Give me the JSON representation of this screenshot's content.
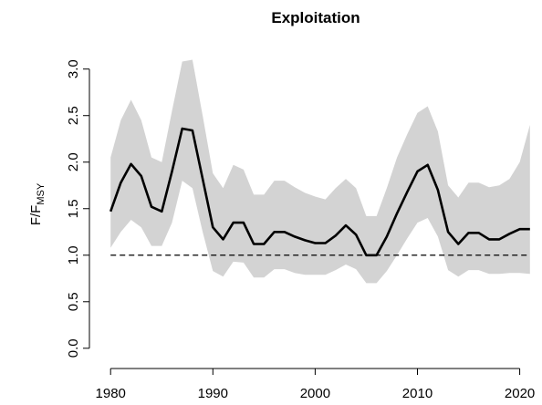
{
  "chart_data": {
    "type": "line",
    "title": "Exploitation",
    "ylabel": {
      "main": "F/F",
      "sub": "MSY"
    },
    "xlabel": "",
    "xlim": [
      1979,
      2022
    ],
    "ylim": [
      -0.1,
      3.35
    ],
    "x_ticks": [
      1980,
      1990,
      2000,
      2010,
      2020
    ],
    "y_ticks": [
      0.0,
      0.5,
      1.0,
      1.5,
      2.0,
      2.5,
      3.0
    ],
    "x_tick_labels": [
      "1980",
      "1990",
      "2000",
      "2010",
      "2020"
    ],
    "y_tick_labels": [
      "0.0",
      "0.5",
      "1.0",
      "1.5",
      "2.0",
      "2.5",
      "3.0"
    ],
    "reference_line": {
      "y": 1.0,
      "style": "dashed"
    },
    "series": [
      {
        "style": "solid",
        "color": "#000000",
        "x": [
          1980,
          1981,
          1982,
          1983,
          1984,
          1985,
          1986,
          1987,
          1988,
          1989,
          1990,
          1991,
          1992,
          1993,
          1994,
          1995,
          1996,
          1997,
          1998,
          1999,
          2000,
          2001,
          2002,
          2003,
          2004,
          2005,
          2006,
          2007,
          2008,
          2009,
          2010,
          2011,
          2012,
          2013,
          2014,
          2015,
          2016,
          2017,
          2018,
          2019,
          2020,
          2021
        ],
        "y": [
          1.47,
          1.78,
          1.98,
          1.85,
          1.52,
          1.47,
          1.9,
          2.36,
          2.34,
          1.82,
          1.3,
          1.17,
          1.35,
          1.35,
          1.12,
          1.12,
          1.25,
          1.25,
          1.2,
          1.16,
          1.13,
          1.13,
          1.21,
          1.32,
          1.22,
          1.0,
          1.0,
          1.2,
          1.45,
          1.68,
          1.9,
          1.97,
          1.7,
          1.25,
          1.12,
          1.24,
          1.24,
          1.17,
          1.17,
          1.23,
          1.28,
          1.28
        ]
      }
    ],
    "confidence_band": {
      "color": "#d3d3d3",
      "x": [
        1980,
        1981,
        1982,
        1983,
        1984,
        1985,
        1986,
        1987,
        1988,
        1989,
        1990,
        1991,
        1992,
        1993,
        1994,
        1995,
        1996,
        1997,
        1998,
        1999,
        2000,
        2001,
        2002,
        2003,
        2004,
        2005,
        2006,
        2007,
        2008,
        2009,
        2010,
        2011,
        2012,
        2013,
        2014,
        2015,
        2016,
        2017,
        2018,
        2019,
        2020,
        2021
      ],
      "upper": [
        2.05,
        2.45,
        2.67,
        2.45,
        2.05,
        2.0,
        2.55,
        3.08,
        3.1,
        2.5,
        1.88,
        1.72,
        1.97,
        1.92,
        1.65,
        1.65,
        1.8,
        1.8,
        1.73,
        1.67,
        1.63,
        1.6,
        1.72,
        1.82,
        1.72,
        1.42,
        1.42,
        1.72,
        2.05,
        2.3,
        2.53,
        2.6,
        2.33,
        1.75,
        1.62,
        1.78,
        1.78,
        1.73,
        1.75,
        1.82,
        2.0,
        2.4
      ],
      "lower": [
        1.08,
        1.25,
        1.38,
        1.3,
        1.1,
        1.1,
        1.35,
        1.8,
        1.72,
        1.25,
        0.83,
        0.77,
        0.93,
        0.92,
        0.76,
        0.76,
        0.85,
        0.85,
        0.81,
        0.79,
        0.79,
        0.79,
        0.84,
        0.9,
        0.85,
        0.7,
        0.7,
        0.83,
        1.0,
        1.18,
        1.35,
        1.4,
        1.2,
        0.84,
        0.77,
        0.84,
        0.84,
        0.8,
        0.8,
        0.81,
        0.81,
        0.8
      ]
    }
  }
}
